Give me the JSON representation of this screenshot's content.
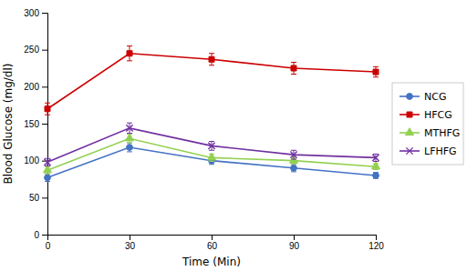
{
  "chart_data": {
    "type": "line",
    "xlabel": "Time (Min)",
    "ylabel": "Blood Glucose (mg/dl)",
    "x": [
      0,
      30,
      60,
      90,
      120
    ],
    "series": [
      {
        "name": "NCG",
        "color": "#4472C4",
        "marker": "circle",
        "values": [
          77,
          118,
          100,
          90,
          80
        ],
        "errors": [
          5,
          6,
          5,
          5,
          4
        ]
      },
      {
        "name": "HFCG",
        "color": "#CC0000",
        "marker": "square",
        "values": [
          170,
          245,
          237,
          225,
          220
        ],
        "errors": [
          8,
          10,
          8,
          8,
          7
        ]
      },
      {
        "name": "MTHFG",
        "color": "#92D050",
        "marker": "triangle",
        "values": [
          87,
          130,
          104,
          100,
          92
        ],
        "errors": [
          5,
          6,
          5,
          5,
          4
        ]
      },
      {
        "name": "LFHFG",
        "color": "#7030A0",
        "marker": "x",
        "values": [
          98,
          144,
          120,
          108,
          104
        ],
        "errors": [
          5,
          7,
          6,
          6,
          5
        ]
      }
    ],
    "xlim": [
      0,
      120
    ],
    "xticks": [
      0,
      30,
      60,
      90,
      120
    ],
    "ylim": [
      0,
      300
    ],
    "yticks": [
      0,
      50,
      100,
      150,
      200,
      250,
      300
    ],
    "grid": false,
    "legend": "right"
  }
}
